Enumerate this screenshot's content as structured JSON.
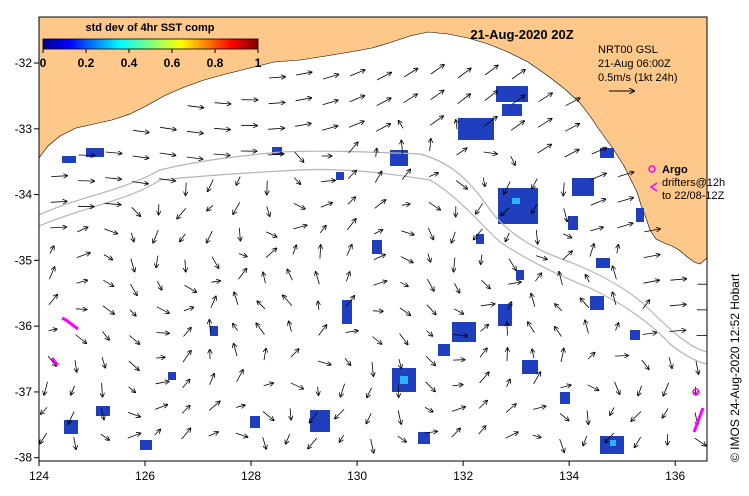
{
  "map": {
    "title": "21-Aug-2020 20Z",
    "lon_range": [
      124,
      136.6
    ],
    "lat_range": [
      -38.05,
      -31.3
    ],
    "x_ticks": [
      "124",
      "126",
      "128",
      "130",
      "132",
      "134",
      "136"
    ],
    "x_tick_values": [
      124,
      126,
      128,
      130,
      132,
      134,
      136
    ],
    "y_ticks": [
      "-32",
      "-33",
      "-34",
      "-35",
      "-36",
      "-37",
      "-38"
    ],
    "y_tick_values": [
      -32,
      -33,
      -34,
      -35,
      -36,
      -37,
      -38
    ],
    "colors": {
      "land": "#fdc889",
      "ocean": "#ffffff",
      "isobath": "#b4b4b4",
      "argo": "#ff00ff",
      "frame": "#000000"
    }
  },
  "colorbar": {
    "title": "std dev of 4hr SST comp",
    "ticks": [
      "0",
      "0.2",
      "0.4",
      "0.6",
      "0.8",
      "1"
    ],
    "range": [
      0,
      1
    ],
    "colormap": "jet"
  },
  "legend": {
    "product": "NRT00 GSL",
    "time": "21-Aug 06:00Z",
    "scale": "0.5m/s (1kt 24h)"
  },
  "argo": {
    "label": "Argo",
    "drifters_line1": "drifters@12h",
    "drifters_line2": "to 22/08-12Z"
  },
  "credit": "©  IMOS 24-Aug-2020 12:52 Hobart"
}
